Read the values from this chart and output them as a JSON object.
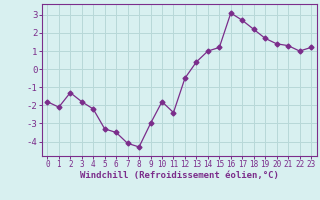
{
  "x": [
    0,
    1,
    2,
    3,
    4,
    5,
    6,
    7,
    8,
    9,
    10,
    11,
    12,
    13,
    14,
    15,
    16,
    17,
    18,
    19,
    20,
    21,
    22,
    23
  ],
  "y": [
    -1.8,
    -2.1,
    -1.3,
    -1.8,
    -2.2,
    -3.3,
    -3.5,
    -4.1,
    -4.3,
    -3.0,
    -1.8,
    -2.4,
    -0.5,
    0.4,
    1.0,
    1.2,
    3.1,
    2.7,
    2.2,
    1.7,
    1.4,
    1.3,
    1.0,
    1.2
  ],
  "line_color": "#7b2d8b",
  "marker": "D",
  "marker_size": 2.5,
  "bg_color": "#d8f0f0",
  "grid_color": "#b8d8d8",
  "xlabel": "Windchill (Refroidissement éolien,°C)",
  "xlabel_color": "#7b2d8b",
  "tick_color": "#7b2d8b",
  "spine_color": "#7b2d8b",
  "ylim": [
    -4.8,
    3.6
  ],
  "yticks": [
    -4,
    -3,
    -2,
    -1,
    0,
    1,
    2,
    3
  ],
  "xlim": [
    -0.5,
    23.5
  ],
  "xticks": [
    0,
    1,
    2,
    3,
    4,
    5,
    6,
    7,
    8,
    9,
    10,
    11,
    12,
    13,
    14,
    15,
    16,
    17,
    18,
    19,
    20,
    21,
    22,
    23
  ]
}
